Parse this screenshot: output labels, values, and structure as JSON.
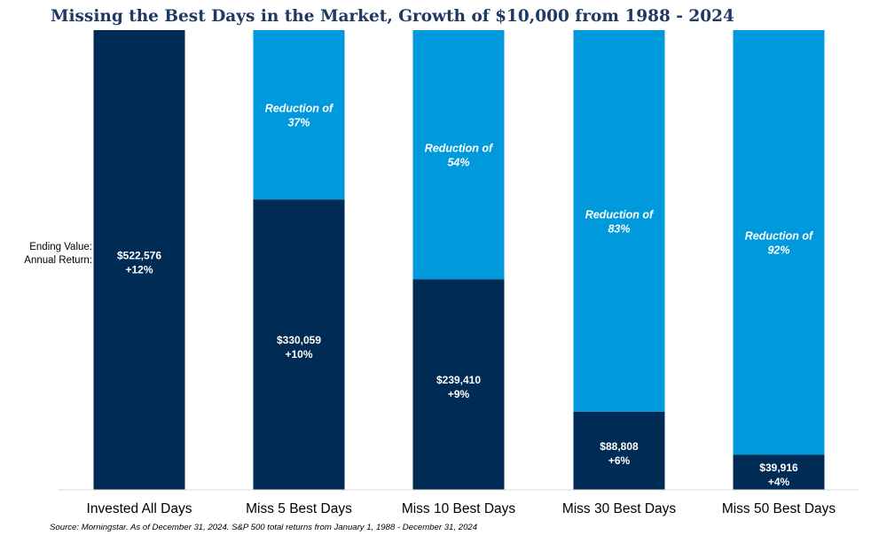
{
  "title": "Missing the Best Days in the Market, Growth of $10,000 from 1988 - 2024",
  "row_labels": {
    "ending_value": "Ending Value:",
    "annual_return": "Annual Return:"
  },
  "source": "Source: Morningstar. As of December 31, 2024. S&P 500 total returns from January 1, 1988 - December 31, 2024",
  "colors": {
    "ending_value_bar": "#002b54",
    "reduction_bar": "#0099dc",
    "title": "#1f3864"
  },
  "chart_data": {
    "type": "bar",
    "stacked": true,
    "categories": [
      "Invested All Days",
      "Miss 5 Best Days",
      "Miss 10 Best Days",
      "Miss 30 Best Days",
      "Miss 50 Best Days"
    ],
    "series": [
      {
        "values": [
          522576,
          330059,
          239410,
          88808,
          39916
        ]
      },
      {
        "values": [
          0,
          192517,
          283166,
          433768,
          482660
        ]
      }
    ],
    "ylim": [
      0,
      522576
    ],
    "grid": false,
    "value_labels": [
      "$522,576",
      "$330,059",
      "$239,410",
      "$88,808",
      "$39,916"
    ],
    "return_labels": [
      "+12%",
      "+10%",
      "+9%",
      "+6%",
      "+4%"
    ],
    "reduction_labels": [
      null,
      [
        "Reduction of",
        "37%"
      ],
      [
        "Reduction of",
        "54%"
      ],
      [
        "Reduction of",
        "83%"
      ],
      [
        "Reduction of",
        "92%"
      ]
    ]
  }
}
